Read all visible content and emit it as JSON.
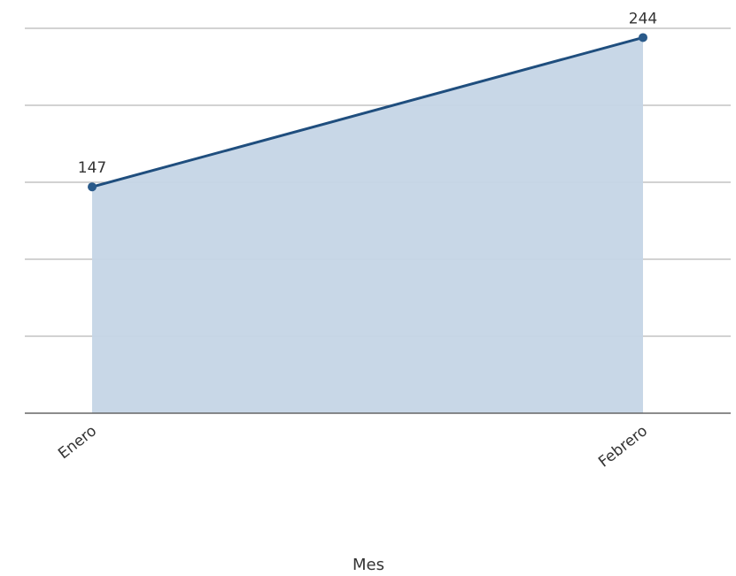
{
  "chart_data": {
    "type": "area",
    "categories": [
      "Enero",
      "Febrero"
    ],
    "series": [
      {
        "values": [
          147,
          244
        ]
      }
    ],
    "data_labels": [
      "147",
      "244"
    ],
    "xlabel": "Mes",
    "ylabel": "",
    "ylim": [
      0,
      250
    ],
    "y_gridlines": [
      50,
      100,
      150,
      200,
      250
    ],
    "grid": true,
    "legend": "none",
    "colors": {
      "line": "#1f4e7e",
      "fill": "#c5d5e6",
      "point": "#2a5a8a"
    }
  }
}
